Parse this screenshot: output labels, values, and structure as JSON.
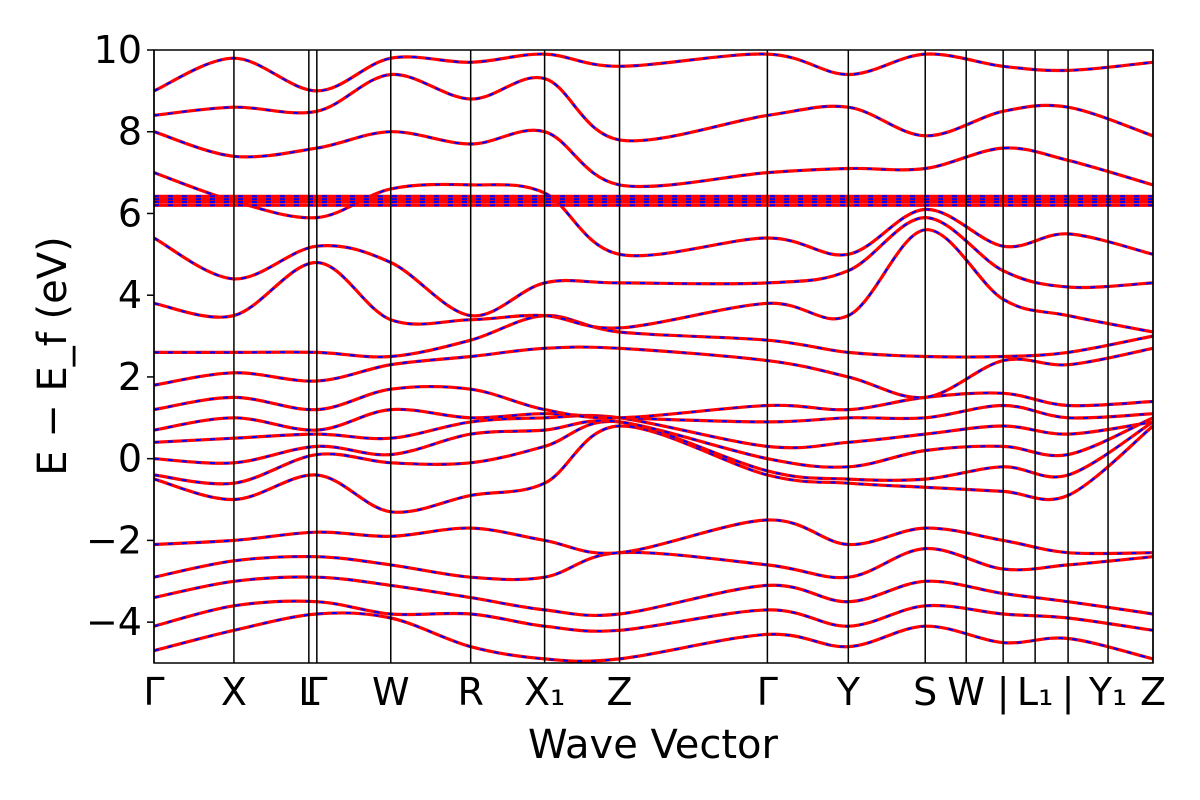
{
  "chart_data": {
    "type": "line",
    "title": "",
    "xlabel": "Wave Vector",
    "ylabel": "E − E_f (eV)",
    "ylim": [
      -5,
      10
    ],
    "yticks": [
      -4,
      -2,
      0,
      2,
      4,
      6,
      8,
      10
    ],
    "ytick_labels": [
      "−4",
      "−2",
      "0",
      "2",
      "4",
      "6",
      "8",
      "10"
    ],
    "kpath": [
      {
        "label": "Γ",
        "k": 0.0
      },
      {
        "label": "X",
        "k": 0.08
      },
      {
        "label": "L",
        "k": 0.155
      },
      {
        "label": "Γ",
        "k": 0.163
      },
      {
        "label": "W",
        "k": 0.237
      },
      {
        "label": "R",
        "k": 0.317
      },
      {
        "label": "X₁",
        "k": 0.391
      },
      {
        "label": "Z",
        "k": 0.466
      },
      {
        "label": "Γ",
        "k": 0.614
      },
      {
        "label": "Y",
        "k": 0.695
      },
      {
        "label": "S",
        "k": 0.772
      },
      {
        "label": "W",
        "k": 0.813
      },
      {
        "label": "|",
        "k": 0.85
      },
      {
        "label": "L₁",
        "k": 0.882
      },
      {
        "label": "|",
        "k": 0.915
      },
      {
        "label": "Y₁",
        "k": 0.955
      },
      {
        "label": "Z",
        "k": 1.0
      }
    ],
    "xlim": [
      0,
      1
    ],
    "grid": false,
    "series_style": {
      "dft_color": "#ff0000",
      "wannier_color": "#0000ff",
      "flat_bands_eV": [
        6.2,
        6.28,
        6.35,
        6.42
      ]
    },
    "bands": [
      {
        "nodes_k": [
          0,
          0.08,
          0.163,
          0.237,
          0.317,
          0.391,
          0.466,
          0.614,
          0.695,
          0.772,
          0.85,
          0.915,
          1.0
        ],
        "E": [
          -4.7,
          -4.2,
          -3.8,
          -3.9,
          -4.6,
          -4.9,
          -4.9,
          -4.3,
          -4.6,
          -4.1,
          -4.5,
          -4.4,
          -4.9
        ]
      },
      {
        "nodes_k": [
          0,
          0.08,
          0.163,
          0.237,
          0.317,
          0.391,
          0.466,
          0.614,
          0.695,
          0.772,
          0.85,
          0.915,
          1.0
        ],
        "E": [
          -4.1,
          -3.6,
          -3.5,
          -3.8,
          -3.8,
          -4.1,
          -4.2,
          -3.7,
          -4.1,
          -3.6,
          -3.8,
          -3.9,
          -4.2
        ]
      },
      {
        "nodes_k": [
          0,
          0.08,
          0.163,
          0.237,
          0.317,
          0.391,
          0.466,
          0.614,
          0.695,
          0.772,
          0.85,
          0.915,
          1.0
        ],
        "E": [
          -3.4,
          -3.0,
          -2.9,
          -3.1,
          -3.4,
          -3.7,
          -3.8,
          -3.1,
          -3.5,
          -3.0,
          -3.3,
          -3.5,
          -3.8
        ]
      },
      {
        "nodes_k": [
          0,
          0.08,
          0.163,
          0.237,
          0.317,
          0.391,
          0.466,
          0.614,
          0.695,
          0.772,
          0.85,
          0.915,
          1.0
        ],
        "E": [
          -2.9,
          -2.5,
          -2.4,
          -2.6,
          -2.9,
          -2.9,
          -2.3,
          -2.6,
          -2.9,
          -2.2,
          -2.7,
          -2.6,
          -2.4
        ]
      },
      {
        "nodes_k": [
          0,
          0.08,
          0.163,
          0.237,
          0.317,
          0.391,
          0.466,
          0.614,
          0.695,
          0.772,
          0.85,
          0.915,
          1.0
        ],
        "E": [
          -2.1,
          -2.0,
          -1.8,
          -1.9,
          -1.7,
          -2.0,
          -2.3,
          -1.5,
          -2.1,
          -1.7,
          -2.0,
          -2.3,
          -2.3
        ]
      },
      {
        "nodes_k": [
          0,
          0.08,
          0.163,
          0.237,
          0.317,
          0.391,
          0.466,
          0.614,
          0.695,
          0.772,
          0.85,
          0.915,
          1.0
        ],
        "E": [
          -0.5,
          -1.0,
          -0.4,
          -1.3,
          -0.9,
          -0.6,
          0.8,
          -0.4,
          -0.6,
          -0.7,
          -0.8,
          -0.9,
          0.8
        ]
      },
      {
        "nodes_k": [
          0,
          0.08,
          0.163,
          0.237,
          0.317,
          0.391,
          0.466,
          0.614,
          0.695,
          0.772,
          0.85,
          0.915,
          1.0
        ],
        "E": [
          -0.4,
          -0.6,
          0.1,
          -0.1,
          -0.1,
          0.3,
          0.9,
          -0.3,
          -0.5,
          -0.5,
          -0.2,
          -0.4,
          0.9
        ]
      },
      {
        "nodes_k": [
          0,
          0.08,
          0.163,
          0.237,
          0.317,
          0.391,
          0.466,
          0.614,
          0.695,
          0.772,
          0.85,
          0.915,
          1.0
        ],
        "E": [
          0.0,
          -0.1,
          0.3,
          0.1,
          0.6,
          0.7,
          0.9,
          0.0,
          -0.2,
          0.2,
          0.3,
          0.1,
          1.0
        ]
      },
      {
        "nodes_k": [
          0,
          0.08,
          0.163,
          0.237,
          0.317,
          0.391,
          0.466,
          0.614,
          0.695,
          0.772,
          0.85,
          0.915,
          1.0
        ],
        "E": [
          0.4,
          0.5,
          0.6,
          0.5,
          0.9,
          1.0,
          1.0,
          0.3,
          0.4,
          0.6,
          0.8,
          0.6,
          0.9
        ]
      },
      {
        "nodes_k": [
          0,
          0.08,
          0.163,
          0.237,
          0.317,
          0.391,
          0.466,
          0.614,
          0.695,
          0.772,
          0.85,
          0.915,
          1.0
        ],
        "E": [
          0.7,
          1.0,
          0.7,
          1.2,
          1.0,
          1.1,
          1.0,
          0.9,
          1.0,
          1.0,
          1.3,
          1.0,
          1.1
        ]
      },
      {
        "nodes_k": [
          0,
          0.08,
          0.163,
          0.237,
          0.317,
          0.391,
          0.466,
          0.614,
          0.695,
          0.772,
          0.85,
          0.915,
          1.0
        ],
        "E": [
          1.2,
          1.5,
          1.2,
          1.7,
          1.7,
          1.2,
          1.0,
          1.3,
          1.2,
          1.5,
          1.6,
          1.3,
          1.4
        ]
      },
      {
        "nodes_k": [
          0,
          0.08,
          0.163,
          0.237,
          0.317,
          0.391,
          0.466,
          0.614,
          0.695,
          0.772,
          0.85,
          0.915,
          1.0
        ],
        "E": [
          1.8,
          2.1,
          1.9,
          2.3,
          2.5,
          2.7,
          2.7,
          2.4,
          2.0,
          1.5,
          2.4,
          2.3,
          2.7
        ]
      },
      {
        "nodes_k": [
          0,
          0.08,
          0.163,
          0.237,
          0.317,
          0.391,
          0.466,
          0.614,
          0.695,
          0.772,
          0.85,
          0.915,
          1.0
        ],
        "E": [
          2.6,
          2.6,
          2.6,
          2.5,
          2.9,
          3.5,
          3.1,
          2.9,
          2.6,
          2.5,
          2.5,
          2.6,
          3.0
        ]
      },
      {
        "nodes_k": [
          0,
          0.08,
          0.163,
          0.237,
          0.317,
          0.391,
          0.466,
          0.614,
          0.695,
          0.772,
          0.85,
          0.915,
          1.0
        ],
        "E": [
          3.8,
          3.5,
          4.8,
          3.4,
          3.4,
          3.5,
          3.2,
          3.8,
          3.5,
          5.6,
          3.9,
          3.5,
          3.1
        ]
      },
      {
        "nodes_k": [
          0,
          0.08,
          0.163,
          0.237,
          0.317,
          0.391,
          0.466,
          0.614,
          0.695,
          0.772,
          0.85,
          0.915,
          1.0
        ],
        "E": [
          5.4,
          4.4,
          5.2,
          4.8,
          3.5,
          4.3,
          4.3,
          4.3,
          4.6,
          5.9,
          4.6,
          4.2,
          4.3
        ]
      },
      {
        "nodes_k": [
          0,
          0.08,
          0.163,
          0.237,
          0.317,
          0.391,
          0.466,
          0.614,
          0.695,
          0.772,
          0.85,
          0.915,
          1.0
        ],
        "E": [
          7.0,
          6.3,
          5.9,
          6.6,
          6.7,
          6.5,
          5.0,
          5.4,
          5.0,
          6.1,
          5.2,
          5.5,
          5.0
        ]
      },
      {
        "nodes_k": [
          0,
          0.08,
          0.163,
          0.237,
          0.317,
          0.391,
          0.466,
          0.614,
          0.695,
          0.772,
          0.85,
          0.915,
          1.0
        ],
        "E": [
          8.0,
          7.4,
          7.6,
          8.0,
          7.7,
          8.0,
          6.7,
          7.0,
          7.1,
          7.1,
          7.6,
          7.3,
          6.7
        ]
      },
      {
        "nodes_k": [
          0,
          0.08,
          0.163,
          0.237,
          0.317,
          0.391,
          0.466,
          0.614,
          0.695,
          0.772,
          0.85,
          0.915,
          1.0
        ],
        "E": [
          8.4,
          8.6,
          8.5,
          9.4,
          8.8,
          9.3,
          7.8,
          8.4,
          8.6,
          7.9,
          8.5,
          8.6,
          7.9
        ]
      },
      {
        "nodes_k": [
          0,
          0.08,
          0.163,
          0.237,
          0.317,
          0.391,
          0.466,
          0.614,
          0.695,
          0.772,
          0.85,
          0.915,
          1.0
        ],
        "E": [
          9.0,
          9.8,
          9.0,
          9.8,
          9.7,
          9.9,
          9.6,
          9.9,
          9.4,
          9.9,
          9.6,
          9.5,
          9.7
        ]
      }
    ]
  }
}
